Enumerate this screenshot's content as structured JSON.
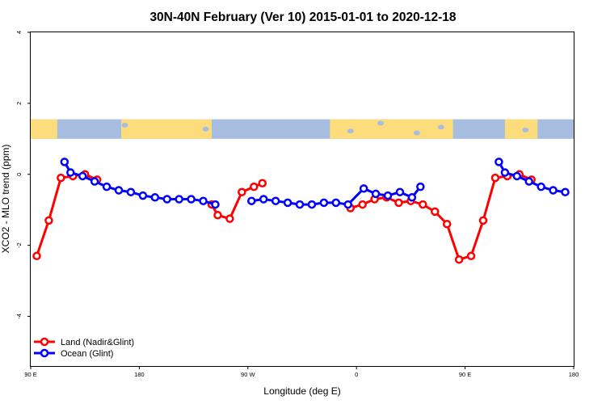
{
  "chart_data": {
    "type": "line",
    "title": "30N-40N February (Ver 10)   2015-01-01 to 2020-12-18",
    "xlabel": "Longitude (deg E)",
    "ylabel": "XCO2 - MLO trend (ppm)",
    "xlim": [
      -90,
      360
    ],
    "ylim": [
      -5.4,
      4.0
    ],
    "x_ticks": [
      {
        "value": -90,
        "label": "90 E"
      },
      {
        "value": 0,
        "label": "180"
      },
      {
        "value": 90,
        "label": "90 W"
      },
      {
        "value": 180,
        "label": "0"
      },
      {
        "value": 270,
        "label": "90 E"
      },
      {
        "value": 360,
        "label": "180"
      }
    ],
    "y_ticks": [
      {
        "value": 4,
        "label": "4"
      },
      {
        "value": 2,
        "label": "2"
      },
      {
        "value": 0,
        "label": "0"
      },
      {
        "value": -2,
        "label": "-2"
      },
      {
        "value": -4,
        "label": "-4"
      }
    ],
    "map_band": {
      "y_range": [
        1.0,
        1.55
      ],
      "ocean_color": "#a7bddf",
      "land_color": "#fddc7b"
    },
    "legend_position": "bottom-left",
    "series": [
      {
        "name": "Land (Nadir&Glint)",
        "color": "#ff0000",
        "segments": [
          [
            [
              -85,
              -2.3
            ],
            [
              -75,
              -1.3
            ],
            [
              -65,
              -0.1
            ],
            [
              -55,
              -0.05
            ],
            [
              -45,
              0.0
            ],
            [
              -35,
              -0.15
            ]
          ],
          [
            [
              60,
              -0.85
            ],
            [
              65,
              -1.15
            ],
            [
              75,
              -1.25
            ],
            [
              85,
              -0.5
            ],
            [
              95,
              -0.35
            ],
            [
              102,
              -0.25
            ]
          ],
          [
            [
              175,
              -0.95
            ],
            [
              185,
              -0.85
            ],
            [
              195,
              -0.7
            ],
            [
              205,
              -0.65
            ],
            [
              215,
              -0.8
            ],
            [
              225,
              -0.75
            ],
            [
              235,
              -0.85
            ],
            [
              245,
              -1.05
            ],
            [
              255,
              -1.4
            ],
            [
              265,
              -2.4
            ],
            [
              275,
              -2.3
            ],
            [
              285,
              -1.3
            ],
            [
              295,
              -0.1
            ],
            [
              305,
              -0.05
            ],
            [
              315,
              0.0
            ],
            [
              325,
              -0.15
            ]
          ]
        ]
      },
      {
        "name": "Ocean (Glint)",
        "color": "#0000ff",
        "segments": [
          [
            [
              -62,
              0.35
            ],
            [
              -57,
              0.05
            ],
            [
              -47,
              -0.05
            ],
            [
              -37,
              -0.2
            ],
            [
              -27,
              -0.35
            ],
            [
              -17,
              -0.45
            ],
            [
              -7,
              -0.5
            ],
            [
              3,
              -0.6
            ],
            [
              13,
              -0.65
            ],
            [
              23,
              -0.7
            ],
            [
              33,
              -0.7
            ],
            [
              43,
              -0.7
            ],
            [
              53,
              -0.75
            ],
            [
              63,
              -0.85
            ]
          ],
          [
            [
              93,
              -0.75
            ],
            [
              103,
              -0.7
            ],
            [
              113,
              -0.75
            ],
            [
              123,
              -0.8
            ],
            [
              133,
              -0.85
            ],
            [
              143,
              -0.85
            ],
            [
              153,
              -0.8
            ],
            [
              163,
              -0.8
            ],
            [
              173,
              -0.85
            ],
            [
              186,
              -0.4
            ],
            [
              196,
              -0.55
            ],
            [
              206,
              -0.6
            ],
            [
              216,
              -0.5
            ],
            [
              226,
              -0.65
            ],
            [
              233,
              -0.35
            ]
          ],
          [
            [
              298,
              0.35
            ],
            [
              303,
              0.05
            ],
            [
              313,
              -0.05
            ],
            [
              323,
              -0.2
            ],
            [
              333,
              -0.35
            ],
            [
              343,
              -0.45
            ],
            [
              353,
              -0.5
            ]
          ]
        ]
      }
    ]
  }
}
